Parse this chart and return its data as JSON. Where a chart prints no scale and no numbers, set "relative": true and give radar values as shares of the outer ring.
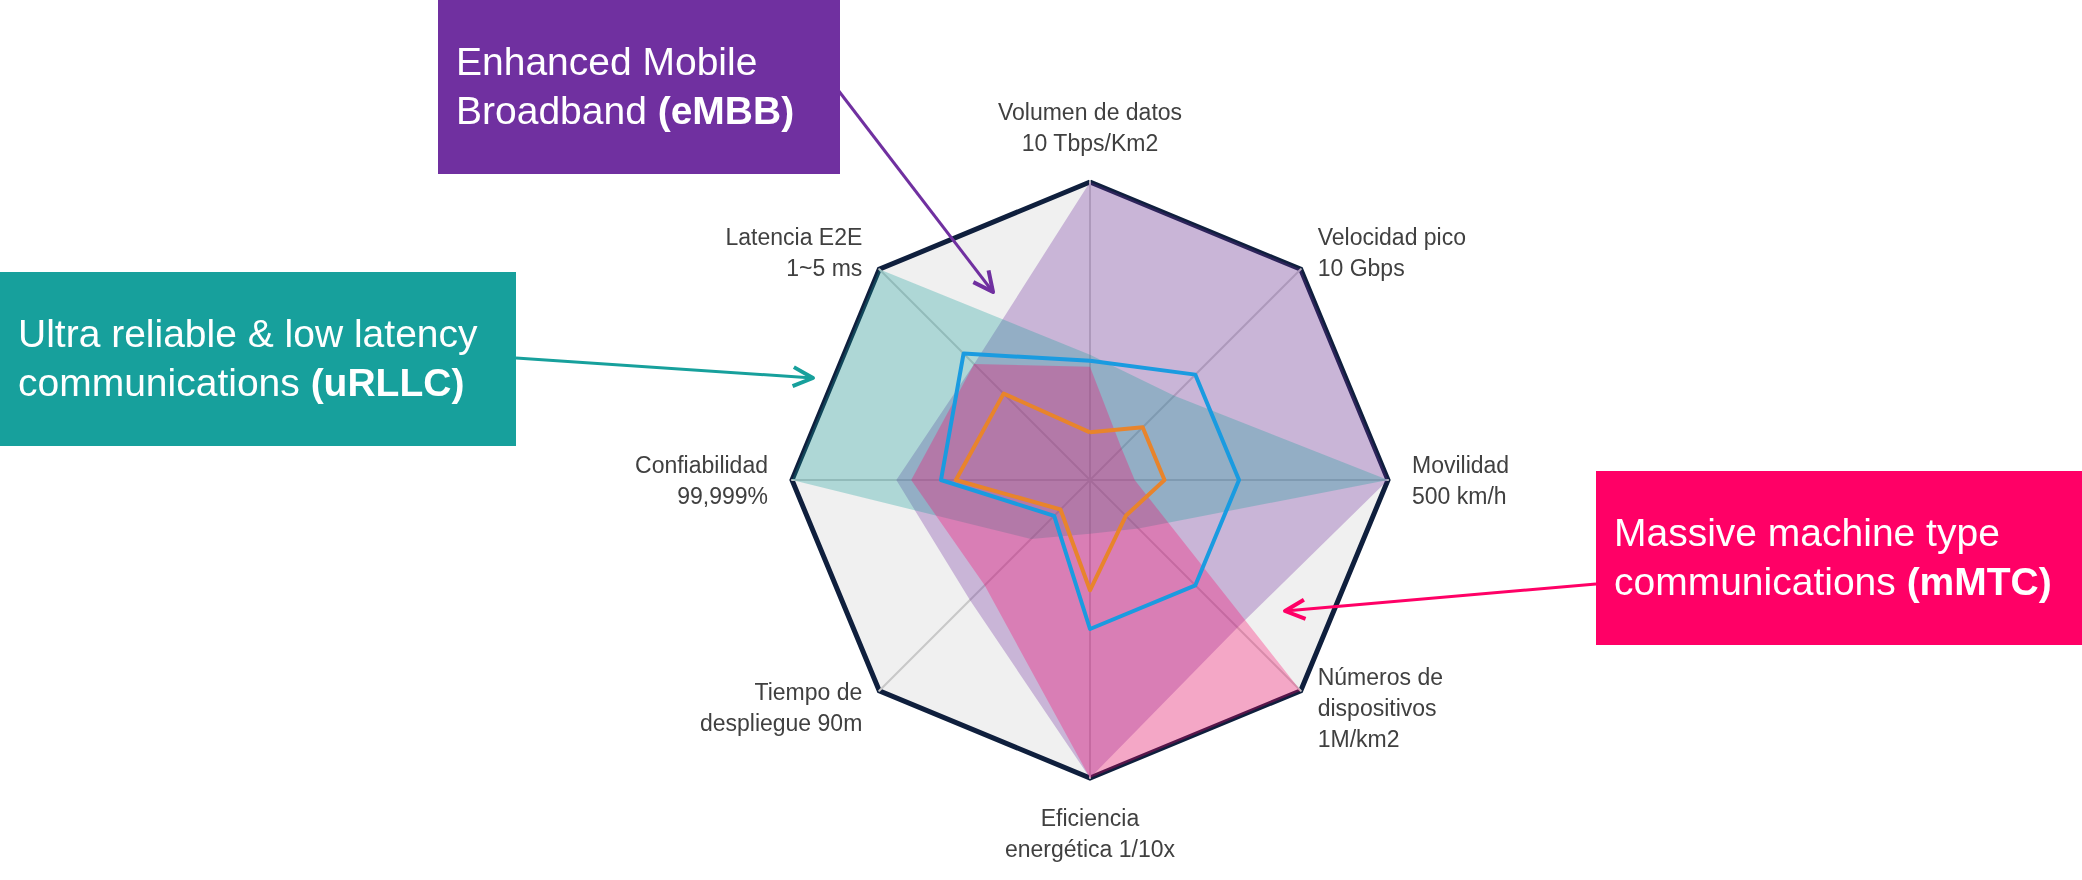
{
  "chart_data": {
    "type": "radar",
    "relative": true,
    "marker": "none",
    "categories": [
      "Volumen de datos\n10 Tbps/Km2",
      "Velocidad pico\n10 Gbps",
      "Movilidad\n500 km/h",
      "Números de\ndispositivos\n1M/km2",
      "Eficiencia\nenergética 1/10x",
      "Tiempo de\ndespliegue 90m",
      "Confiabilidad\n99,999%",
      "Latencia E2E\n1~5 ms"
    ],
    "series": [
      {
        "name": "Enhanced Mobile Broadband (eMBB)",
        "type": "area",
        "color": "#7030a0",
        "values": [
          1,
          1,
          1,
          0.7,
          1,
          0.57,
          0.65,
          0.55
        ]
      },
      {
        "name": "Ultra reliable & low latency communications (uRLLC)",
        "type": "area",
        "color": "#17a09c",
        "values": [
          0.42,
          0.4,
          1,
          0.23,
          0.18,
          0.28,
          1,
          1
        ]
      },
      {
        "name": "Massive machine type communications (mMTC)",
        "type": "area",
        "color": "#ff0066",
        "values": [
          0.38,
          0.15,
          0.15,
          1,
          1,
          0.5,
          0.6,
          0.55
        ]
      },
      {
        "color": "#1a9be0",
        "values": [
          0.4,
          0.5,
          0.5,
          0.5,
          0.5,
          0.17,
          0.5,
          0.6
        ]
      },
      {
        "color": "#e8842c",
        "values": [
          0.16,
          0.25,
          0.25,
          0.17,
          0.37,
          0.14,
          0.45,
          0.41
        ]
      }
    ]
  }
}
